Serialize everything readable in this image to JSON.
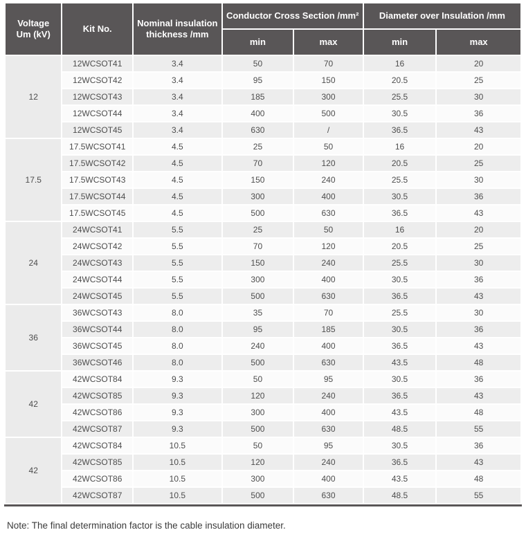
{
  "table": {
    "headers": {
      "voltage": "Voltage\nUm (kV)",
      "kit_no": "Kit No.",
      "nominal_insulation": "Nominal insulation\nthickness /mm",
      "conductor_cross_section": "Conductor Cross Section /mm²",
      "diameter_over_insulation": "Diameter over Insulation /mm",
      "min": "min",
      "max": "max"
    },
    "column_keys": [
      "kit_no",
      "thickness",
      "ccs_min",
      "ccs_max",
      "doi_min",
      "doi_max"
    ],
    "groups": [
      {
        "voltage": "12",
        "rows": [
          [
            "12WCSOT41",
            "3.4",
            "50",
            "70",
            "16",
            "20"
          ],
          [
            "12WCSOT42",
            "3.4",
            "95",
            "150",
            "20.5",
            "25"
          ],
          [
            "12WCSOT43",
            "3.4",
            "185",
            "300",
            "25.5",
            "30"
          ],
          [
            "12WCSOT44",
            "3.4",
            "400",
            "500",
            "30.5",
            "36"
          ],
          [
            "12WCSOT45",
            "3.4",
            "630",
            "/",
            "36.5",
            "43"
          ]
        ]
      },
      {
        "voltage": "17.5",
        "rows": [
          [
            "17.5WCSOT41",
            "4.5",
            "25",
            "50",
            "16",
            "20"
          ],
          [
            "17.5WCSOT42",
            "4.5",
            "70",
            "120",
            "20.5",
            "25"
          ],
          [
            "17.5WCSOT43",
            "4.5",
            "150",
            "240",
            "25.5",
            "30"
          ],
          [
            "17.5WCSOT44",
            "4.5",
            "300",
            "400",
            "30.5",
            "36"
          ],
          [
            "17.5WCSOT45",
            "4.5",
            "500",
            "630",
            "36.5",
            "43"
          ]
        ]
      },
      {
        "voltage": "24",
        "rows": [
          [
            "24WCSOT41",
            "5.5",
            "25",
            "50",
            "16",
            "20"
          ],
          [
            "24WCSOT42",
            "5.5",
            "70",
            "120",
            "20.5",
            "25"
          ],
          [
            "24WCSOT43",
            "5.5",
            "150",
            "240",
            "25.5",
            "30"
          ],
          [
            "24WCSOT44",
            "5.5",
            "300",
            "400",
            "30.5",
            "36"
          ],
          [
            "24WCSOT45",
            "5.5",
            "500",
            "630",
            "36.5",
            "43"
          ]
        ]
      },
      {
        "voltage": "36",
        "rows": [
          [
            "36WCSOT43",
            "8.0",
            "35",
            "70",
            "25.5",
            "30"
          ],
          [
            "36WCSOT44",
            "8.0",
            "95",
            "185",
            "30.5",
            "36"
          ],
          [
            "36WCSOT45",
            "8.0",
            "240",
            "400",
            "36.5",
            "43"
          ],
          [
            "36WCSOT46",
            "8.0",
            "500",
            "630",
            "43.5",
            "48"
          ]
        ]
      },
      {
        "voltage": "42",
        "rows": [
          [
            "42WCSOT84",
            "9.3",
            "50",
            "95",
            "30.5",
            "36"
          ],
          [
            "42WCSOT85",
            "9.3",
            "120",
            "240",
            "36.5",
            "43"
          ],
          [
            "42WCSOT86",
            "9.3",
            "300",
            "400",
            "43.5",
            "48"
          ],
          [
            "42WCSOT87",
            "9.3",
            "500",
            "630",
            "48.5",
            "55"
          ]
        ]
      },
      {
        "voltage": "42",
        "rows": [
          [
            "42WCSOT84",
            "10.5",
            "50",
            "95",
            "30.5",
            "36"
          ],
          [
            "42WCSOT85",
            "10.5",
            "120",
            "240",
            "36.5",
            "43"
          ],
          [
            "42WCSOT86",
            "10.5",
            "300",
            "400",
            "43.5",
            "48"
          ],
          [
            "42WCSOT87",
            "10.5",
            "500",
            "630",
            "48.5",
            "55"
          ]
        ]
      }
    ]
  },
  "note": "Note: The final determination factor is the cable insulation diameter.",
  "colors": {
    "header_bg": "#595657",
    "row_odd_bg": "#ededed",
    "row_even_bg": "#fbfbfb",
    "voltage_cell_bg": "#ebebeb",
    "bottom_rule": "#595657",
    "header_text": "#ffffff",
    "body_text": "#4d4d4d"
  }
}
